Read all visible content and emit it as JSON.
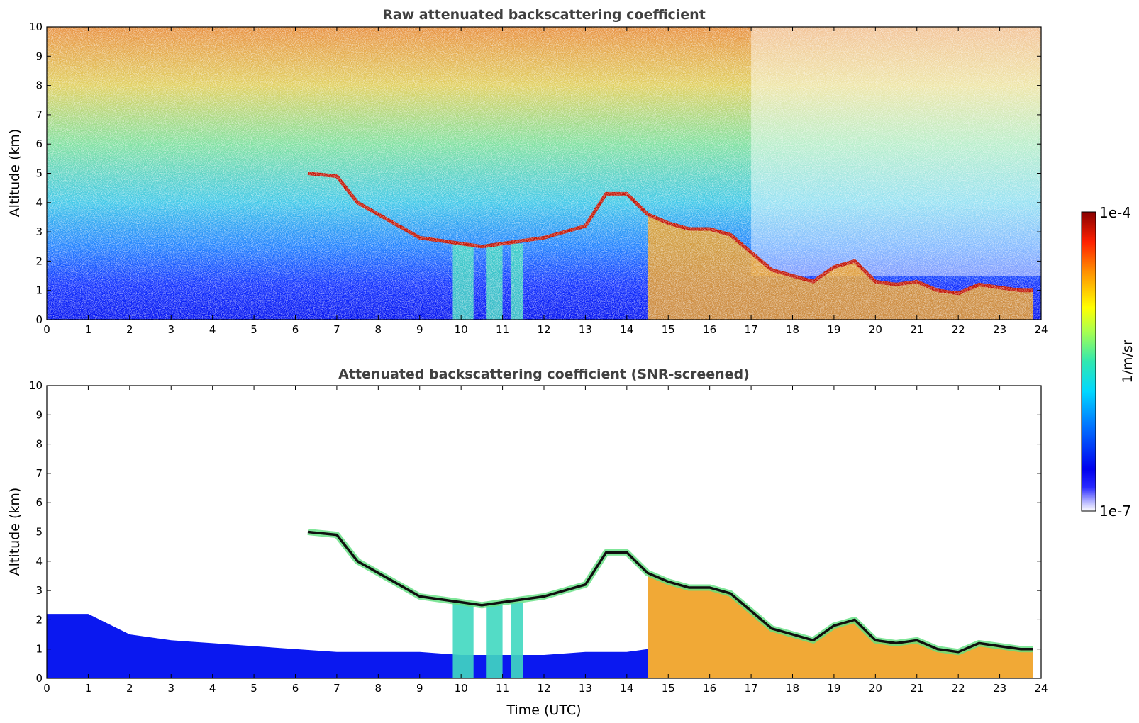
{
  "chart_data": [
    {
      "type": "heatmap",
      "title": "Raw attenuated backscattering coefficient",
      "xlabel": "",
      "ylabel": "Altitude (km)",
      "xlim": [
        0,
        24
      ],
      "ylim": [
        0,
        10
      ],
      "x_ticks": [
        "0",
        "1",
        "2",
        "3",
        "4",
        "5",
        "6",
        "7",
        "8",
        "9",
        "10",
        "11",
        "12",
        "13",
        "14",
        "15",
        "16",
        "17",
        "18",
        "19",
        "20",
        "21",
        "22",
        "23",
        "24"
      ],
      "y_ticks": [
        "0",
        "1",
        "2",
        "3",
        "4",
        "5",
        "6",
        "7",
        "8",
        "9",
        "10"
      ],
      "cloud_layer": {
        "time_utc": [
          6.3,
          7.0,
          7.5,
          8.0,
          8.5,
          9.0,
          9.5,
          10.0,
          10.5,
          11.0,
          11.5,
          12.0,
          12.5,
          13.0,
          13.5,
          14.0,
          14.5,
          15.0,
          15.5,
          16.0,
          16.5,
          17.0,
          17.5,
          18.0,
          18.5,
          19.0,
          19.5,
          20.0,
          20.5,
          21.0,
          21.5,
          22.0,
          22.5,
          23.0,
          23.5,
          23.8
        ],
        "altitude_km": [
          5.0,
          4.9,
          4.0,
          3.6,
          3.2,
          2.8,
          2.7,
          2.6,
          2.5,
          2.6,
          2.7,
          2.8,
          3.0,
          3.2,
          4.3,
          4.3,
          3.6,
          3.3,
          3.1,
          3.1,
          2.9,
          2.3,
          1.7,
          1.5,
          1.3,
          1.8,
          2.0,
          1.3,
          1.2,
          1.3,
          1.0,
          0.9,
          1.2,
          1.1,
          1.0,
          1.0
        ]
      }
    },
    {
      "type": "heatmap",
      "title": "Attenuated backscattering coefficient (SNR-screened)",
      "xlabel": "Time (UTC)",
      "ylabel": "Altitude (km)",
      "xlim": [
        0,
        24
      ],
      "ylim": [
        0,
        10
      ],
      "x_ticks": [
        "0",
        "1",
        "2",
        "3",
        "4",
        "5",
        "6",
        "7",
        "8",
        "9",
        "10",
        "11",
        "12",
        "13",
        "14",
        "15",
        "16",
        "17",
        "18",
        "19",
        "20",
        "21",
        "22",
        "23",
        "24"
      ],
      "y_ticks": [
        "0",
        "1",
        "2",
        "3",
        "4",
        "5",
        "6",
        "7",
        "8",
        "9",
        "10"
      ],
      "boundary_layer_top": {
        "time_utc": [
          0,
          1,
          2,
          3,
          4,
          5,
          6,
          7,
          8,
          9,
          10,
          11,
          12,
          13,
          14,
          14.5
        ],
        "altitude_km": [
          2.2,
          2.2,
          1.5,
          1.3,
          1.2,
          1.1,
          1.0,
          0.9,
          0.9,
          0.9,
          0.8,
          0.8,
          0.8,
          0.9,
          0.9,
          1.0
        ]
      }
    }
  ],
  "colorbar": {
    "label": "1/m/sr",
    "max_label": "1e-4",
    "min_label": "1e-7",
    "scale": "log",
    "colormap": "jet"
  }
}
